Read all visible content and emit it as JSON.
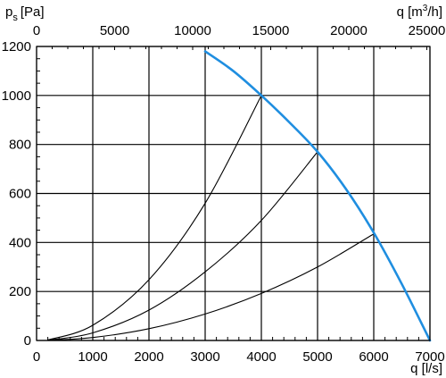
{
  "chart_data": {
    "type": "line",
    "y_label_main": "p",
    "y_label_sub": "s",
    "y_label_unit": "[Pa]",
    "x_label": "q [l/s]",
    "x2_label_main": "q [m",
    "x2_label_sup": "3",
    "x2_label_end": "/h]",
    "xlim": [
      0,
      7000
    ],
    "ylim": [
      0,
      1200
    ],
    "x_ticks": [
      0,
      1000,
      2000,
      3000,
      4000,
      5000,
      6000,
      7000
    ],
    "y_ticks": [
      0,
      200,
      400,
      600,
      800,
      1000,
      1200
    ],
    "x2_lim": [
      0,
      25200
    ],
    "x2_ticks": [
      0,
      5000,
      10000,
      15000,
      20000,
      25000
    ],
    "grid": true,
    "series": [
      {
        "role": "fan-curve",
        "color": "#1f8ee0",
        "points": [
          [
            3000,
            1180
          ],
          [
            3500,
            1100
          ],
          [
            4000,
            1000
          ],
          [
            4500,
            890
          ],
          [
            5000,
            770
          ],
          [
            5500,
            620
          ],
          [
            6000,
            440
          ],
          [
            6500,
            230
          ],
          [
            7000,
            0
          ]
        ]
      },
      {
        "role": "system-curve",
        "color": "#000000",
        "points": [
          [
            200,
            2
          ],
          [
            1000,
            62
          ],
          [
            2000,
            248
          ],
          [
            3000,
            560
          ],
          [
            4000,
            1000
          ]
        ]
      },
      {
        "role": "system-curve",
        "color": "#000000",
        "points": [
          [
            200,
            1
          ],
          [
            1000,
            31
          ],
          [
            2000,
            124
          ],
          [
            3000,
            280
          ],
          [
            4000,
            490
          ],
          [
            5000,
            770
          ]
        ]
      },
      {
        "role": "system-curve",
        "color": "#000000",
        "points": [
          [
            200,
            0.5
          ],
          [
            1000,
            12
          ],
          [
            2000,
            48
          ],
          [
            3000,
            108
          ],
          [
            4000,
            192
          ],
          [
            5000,
            300
          ],
          [
            6000,
            435
          ]
        ]
      }
    ]
  }
}
